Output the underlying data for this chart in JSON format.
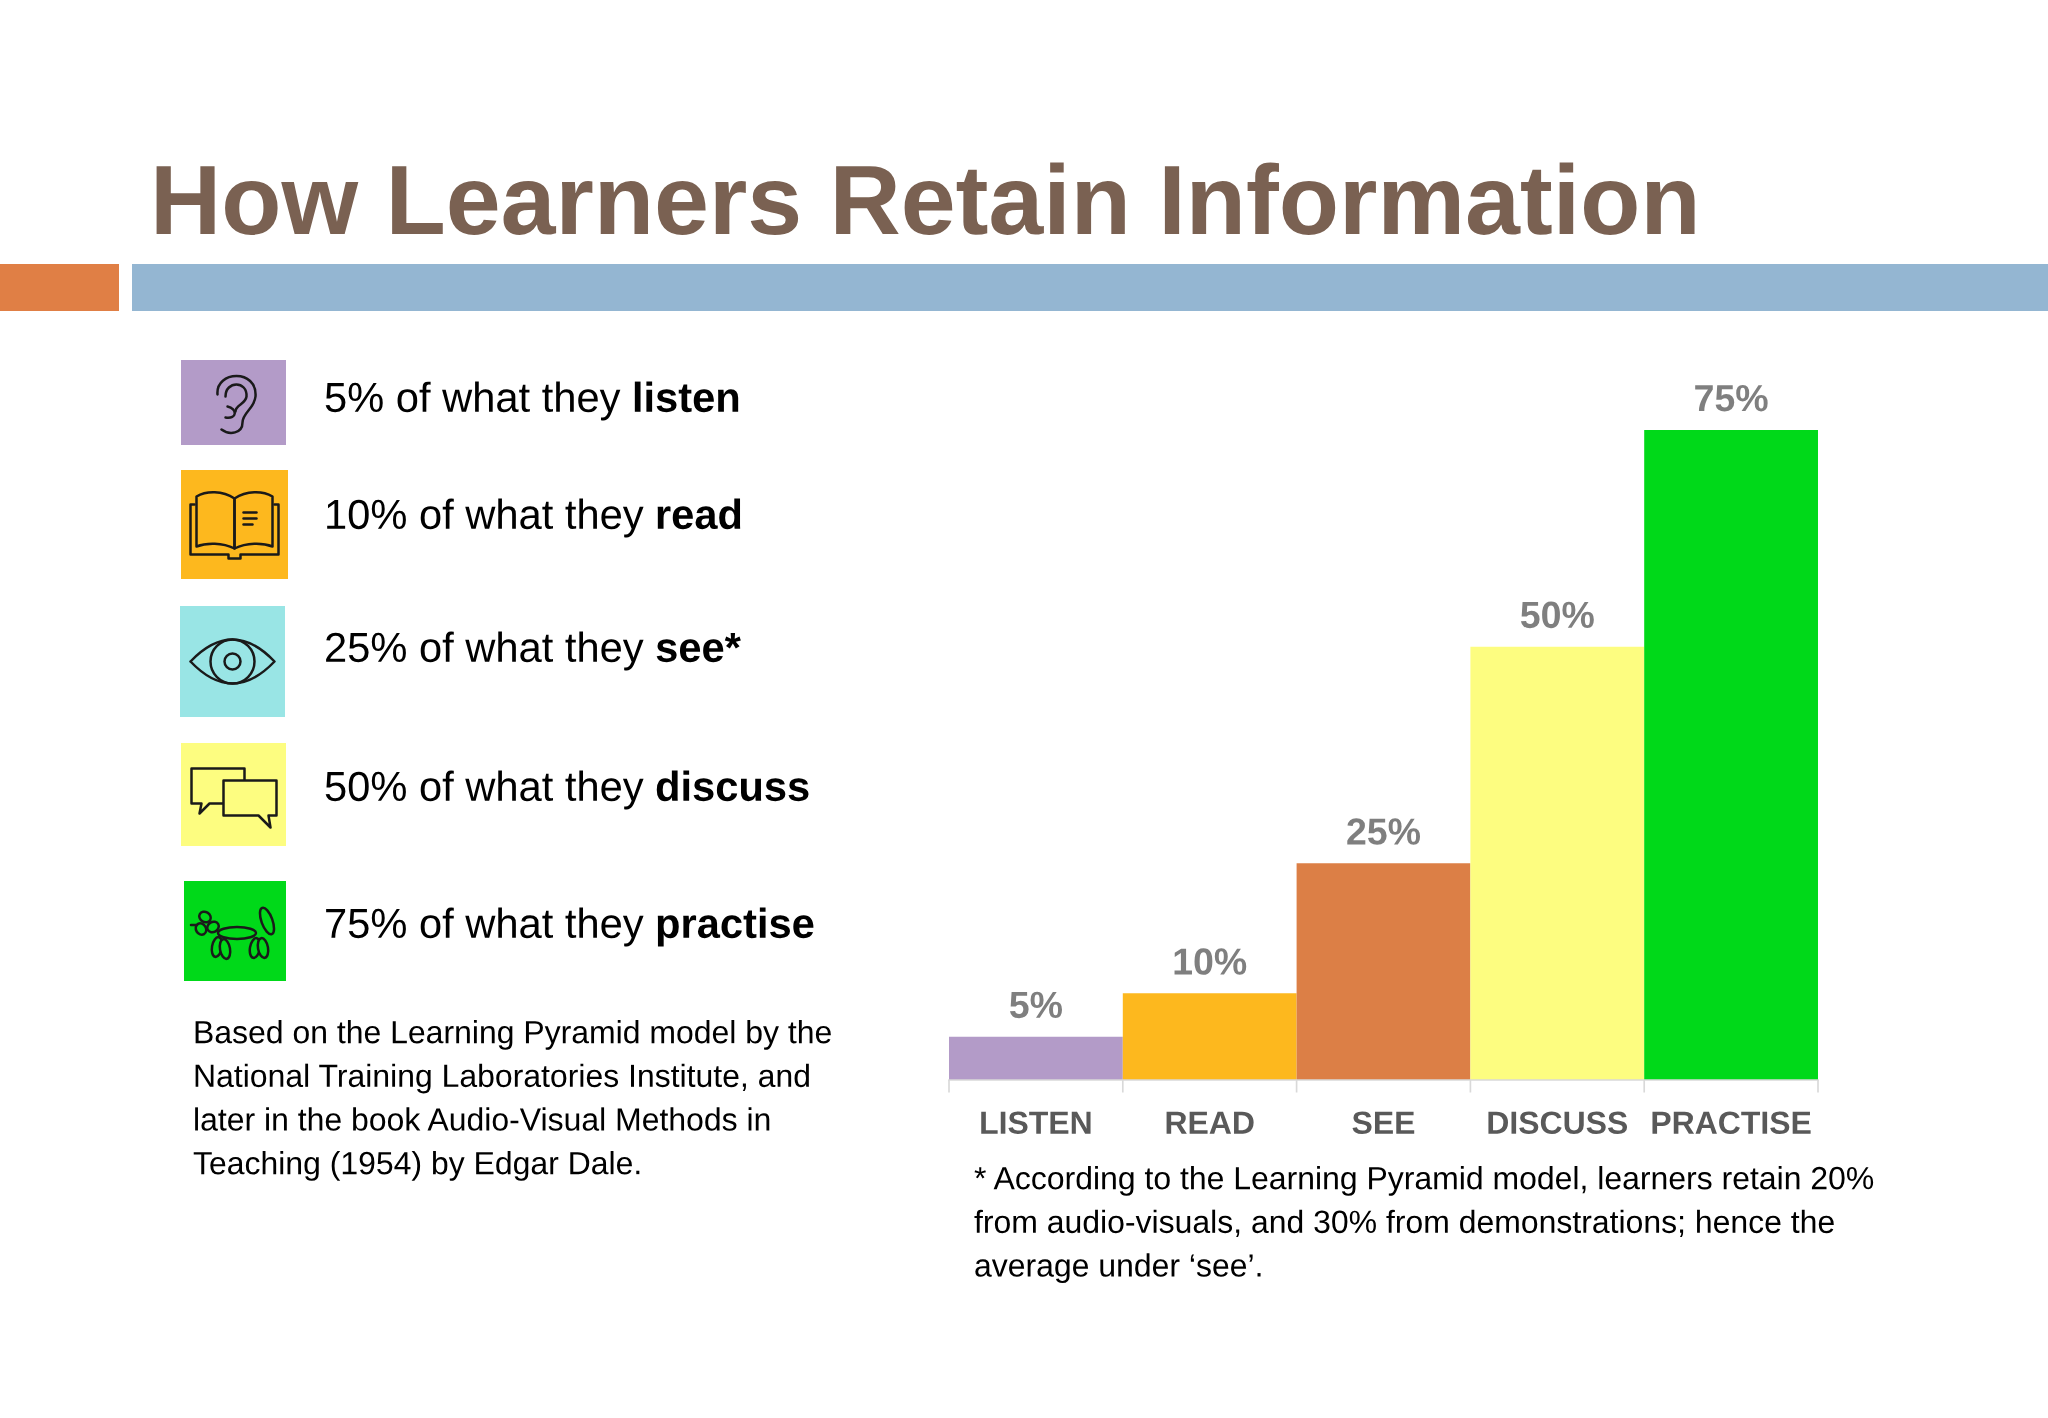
{
  "chart_data": {
    "type": "bar",
    "title": "How Learners Retain Information",
    "categories": [
      "LISTEN",
      "READ",
      "SEE",
      "DISCUSS",
      "PRACTISE"
    ],
    "values": [
      5,
      10,
      25,
      50,
      75
    ],
    "colors": [
      "#b39bc8",
      "#fdb81e",
      "#dc7f46",
      "#fdfd80",
      "#00d919"
    ],
    "value_labels": [
      "5%",
      "10%",
      "25%",
      "50%",
      "75%"
    ],
    "annotations": [
      "5% of what they listen",
      "10% of what they read",
      "25% of what they see*",
      "50% of what they discuss",
      "75% of what they practise",
      "Based on the Learning Pyramid model by the National Training Laboratories Institute, and later in the book Audio-Visual Methods in Teaching (1954) by Edgar Dale.",
      "* According to the Learning Pyramid model, learners retain 20% from audio-visuals, and 30% from demonstrations; hence the average under ‘see’."
    ]
  }
}
